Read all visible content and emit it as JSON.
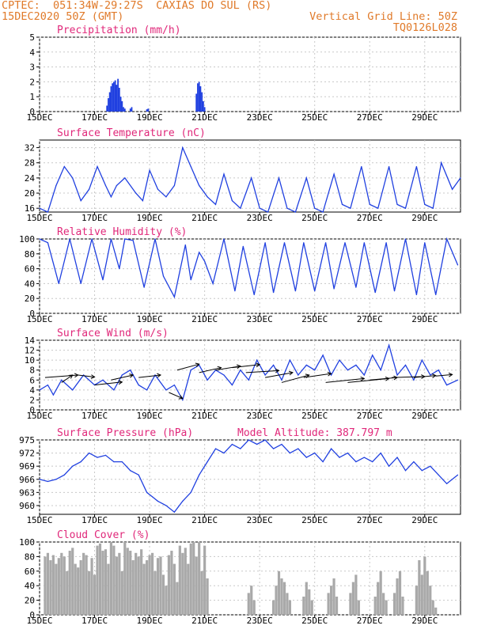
{
  "header": {
    "line1_left": "CPTEC:  051:34W-29:27S  CAXIAS DO SUL (RS)",
    "line2_left": "15DEC2020 50Z (GMT)",
    "line2_right": "Vertical Grid Line: 50Z",
    "line3_right": "TQ0126L028"
  },
  "colors": {
    "header": "#e07a2a",
    "title": "#e0287a",
    "series": "#2040e0",
    "bars": "#a9a9a9",
    "grid": "#c8c8c8"
  },
  "chart_data": [
    {
      "id": "precip",
      "type": "bar",
      "title": "Precipitation (mm/h)",
      "x_tick_labels": [
        "15DEC",
        "17DEC",
        "19DEC",
        "21DEC",
        "23DEC",
        "25DEC",
        "27DEC",
        "29DEC"
      ],
      "ylim": [
        0,
        5
      ],
      "y_ticks": [
        0,
        1,
        2,
        3,
        4,
        5
      ],
      "series": [
        {
          "x": [
            2.45,
            2.5,
            2.55,
            2.6,
            2.65,
            2.7,
            2.75,
            2.8,
            2.85,
            2.9,
            2.95,
            3.0,
            3.05,
            3.1,
            3.3,
            3.35,
            3.9,
            3.95,
            5.7,
            5.75,
            5.8,
            5.85,
            5.9,
            5.95,
            6.0
          ],
          "values": [
            0.4,
            0.9,
            1.3,
            1.7,
            1.9,
            2.0,
            2.1,
            1.8,
            2.2,
            1.6,
            1.0,
            0.7,
            0.3,
            0.2,
            0.2,
            0.3,
            0.15,
            0.2,
            1.2,
            1.9,
            2.0,
            1.7,
            1.3,
            0.7,
            0.3
          ]
        }
      ]
    },
    {
      "id": "temp",
      "type": "line",
      "title": "Surface Temperature (nC)",
      "x_tick_labels": [
        "15DEC",
        "17DEC",
        "19DEC",
        "21DEC",
        "23DEC",
        "25DEC",
        "27DEC",
        "29DEC"
      ],
      "ylim": [
        15,
        34
      ],
      "y_ticks": [
        16,
        20,
        24,
        28,
        32
      ],
      "series": [
        {
          "x": [
            0,
            0.3,
            0.6,
            0.9,
            1.2,
            1.5,
            1.8,
            2.1,
            2.4,
            2.6,
            2.8,
            3.1,
            3.5,
            3.75,
            4.0,
            4.3,
            4.6,
            4.9,
            5.2,
            5.5,
            5.8,
            6.1,
            6.4,
            6.7,
            7.0,
            7.3,
            7.7,
            8.0,
            8.3,
            8.7,
            9.0,
            9.3,
            9.7,
            10.0,
            10.3,
            10.7,
            11.0,
            11.3,
            11.7,
            12.0,
            12.3,
            12.7,
            13.0,
            13.3,
            13.7,
            14.0,
            14.3,
            14.6,
            15.0,
            15.3
          ],
          "values": [
            16,
            15,
            22,
            27,
            24,
            18,
            21,
            27,
            22,
            19,
            22,
            24,
            20,
            18,
            26,
            21,
            19,
            22,
            32,
            27,
            22,
            19,
            17,
            25,
            18,
            16,
            24,
            16,
            15,
            24,
            16,
            15,
            24,
            16,
            15,
            25,
            17,
            16,
            27,
            17,
            16,
            27,
            17,
            16,
            27,
            17,
            16,
            28,
            21,
            24
          ]
        }
      ]
    },
    {
      "id": "rh",
      "type": "line",
      "title": "Relative Humidity (%)",
      "x_tick_labels": [
        "15DEC",
        "17DEC",
        "19DEC",
        "21DEC",
        "23DEC",
        "25DEC",
        "27DEC",
        "29DEC"
      ],
      "ylim": [
        0,
        100
      ],
      "y_ticks": [
        0,
        20,
        40,
        60,
        80,
        100
      ],
      "series": [
        {
          "x": [
            0,
            0.3,
            0.7,
            1.1,
            1.5,
            1.9,
            2.3,
            2.6,
            2.9,
            3.1,
            3.4,
            3.8,
            4.2,
            4.5,
            4.9,
            5.3,
            5.5,
            5.8,
            6.0,
            6.3,
            6.7,
            7.1,
            7.4,
            7.8,
            8.2,
            8.5,
            8.9,
            9.3,
            9.6,
            10.0,
            10.4,
            10.7,
            11.1,
            11.5,
            11.8,
            12.2,
            12.6,
            12.9,
            13.3,
            13.7,
            14.0,
            14.4,
            14.8,
            15.2
          ],
          "values": [
            100,
            95,
            40,
            100,
            40,
            100,
            45,
            100,
            60,
            100,
            98,
            35,
            100,
            50,
            22,
            92,
            45,
            82,
            70,
            40,
            100,
            30,
            90,
            25,
            95,
            28,
            95,
            30,
            95,
            30,
            95,
            33,
            95,
            35,
            95,
            28,
            95,
            30,
            100,
            25,
            95,
            25,
            100,
            65
          ]
        }
      ]
    },
    {
      "id": "wind",
      "type": "line",
      "title": "Surface Wind (m/s)",
      "x_tick_labels": [
        "15DEC",
        "17DEC",
        "19DEC",
        "21DEC",
        "23DEC",
        "25DEC",
        "27DEC",
        "29DEC"
      ],
      "ylim": [
        0,
        14
      ],
      "y_ticks": [
        0,
        2,
        4,
        6,
        8,
        10,
        12,
        14
      ],
      "series": [
        {
          "x": [
            0,
            0.3,
            0.5,
            0.8,
            1.2,
            1.6,
            2.0,
            2.3,
            2.7,
            3.0,
            3.3,
            3.6,
            3.9,
            4.2,
            4.6,
            4.9,
            5.2,
            5.5,
            5.8,
            6.1,
            6.4,
            6.7,
            7.0,
            7.3,
            7.6,
            7.9,
            8.2,
            8.5,
            8.8,
            9.1,
            9.4,
            9.7,
            10.0,
            10.3,
            10.6,
            10.9,
            11.2,
            11.5,
            11.8,
            12.1,
            12.4,
            12.7,
            13.0,
            13.3,
            13.6,
            13.9,
            14.2,
            14.5,
            14.8,
            15.2
          ],
          "values": [
            4,
            5,
            3,
            6,
            4,
            7,
            5,
            6,
            4,
            7,
            8,
            5,
            4,
            7,
            4,
            5,
            2,
            8,
            9,
            6,
            8,
            7,
            5,
            8,
            6,
            10,
            7,
            9,
            6,
            10,
            7,
            9,
            8,
            11,
            7,
            10,
            8,
            9,
            7,
            11,
            8,
            13,
            7,
            9,
            6,
            10,
            7,
            8,
            5,
            6
          ]
        }
      ],
      "arrows": [
        {
          "x": 0.2,
          "y": 6.5,
          "dx": 1.2,
          "dy": 0.5
        },
        {
          "x": 0.8,
          "y": 5.5,
          "dx": 0.4,
          "dy": 1.5
        },
        {
          "x": 1.4,
          "y": 7.0,
          "dx": 0.6,
          "dy": -0.4
        },
        {
          "x": 2.0,
          "y": 5.0,
          "dx": 1.0,
          "dy": 0.6
        },
        {
          "x": 2.6,
          "y": 6.0,
          "dx": 0.8,
          "dy": 1.0
        },
        {
          "x": 3.6,
          "y": 6.5,
          "dx": 0.8,
          "dy": 0.5
        },
        {
          "x": 4.7,
          "y": 3.5,
          "dx": 0.5,
          "dy": -1.2
        },
        {
          "x": 5.0,
          "y": 8.0,
          "dx": 0.8,
          "dy": 1.2
        },
        {
          "x": 5.8,
          "y": 7.5,
          "dx": 0.8,
          "dy": 1.0
        },
        {
          "x": 6.4,
          "y": 8.0,
          "dx": 0.9,
          "dy": 0.8
        },
        {
          "x": 7.0,
          "y": 8.5,
          "dx": 1.0,
          "dy": 0.6
        },
        {
          "x": 7.5,
          "y": 7.5,
          "dx": 1.2,
          "dy": 0.4
        },
        {
          "x": 8.2,
          "y": 6.5,
          "dx": 1.0,
          "dy": 1.0
        },
        {
          "x": 8.8,
          "y": 5.5,
          "dx": 1.0,
          "dy": 1.5
        },
        {
          "x": 9.6,
          "y": 6.5,
          "dx": 1.0,
          "dy": 0.8
        },
        {
          "x": 10.4,
          "y": 5.5,
          "dx": 1.4,
          "dy": 0.8
        },
        {
          "x": 11.2,
          "y": 5.5,
          "dx": 1.5,
          "dy": 0.8
        },
        {
          "x": 12.0,
          "y": 6.0,
          "dx": 1.0,
          "dy": 0.5
        },
        {
          "x": 12.8,
          "y": 6.5,
          "dx": 1.2,
          "dy": 0.2
        },
        {
          "x": 13.6,
          "y": 6.5,
          "dx": 0.8,
          "dy": 0.4
        },
        {
          "x": 14.4,
          "y": 6.8,
          "dx": 0.6,
          "dy": 0.3
        }
      ]
    },
    {
      "id": "pres",
      "type": "line",
      "title": "Surface Pressure (hPa)",
      "annotation": "Model Altitude: 387.797 m",
      "x_tick_labels": [
        "15DEC",
        "17DEC",
        "19DEC",
        "21DEC",
        "23DEC",
        "25DEC",
        "27DEC",
        "29DEC"
      ],
      "ylim": [
        958,
        975
      ],
      "y_ticks": [
        960,
        963,
        966,
        969,
        972,
        975
      ],
      "series": [
        {
          "x": [
            0,
            0.3,
            0.6,
            0.9,
            1.2,
            1.5,
            1.8,
            2.1,
            2.4,
            2.7,
            3.0,
            3.3,
            3.6,
            3.9,
            4.1,
            4.3,
            4.6,
            4.9,
            5.2,
            5.5,
            5.8,
            6.1,
            6.4,
            6.7,
            7.0,
            7.3,
            7.6,
            7.9,
            8.2,
            8.5,
            8.8,
            9.1,
            9.4,
            9.7,
            10.0,
            10.3,
            10.6,
            10.9,
            11.2,
            11.5,
            11.8,
            12.1,
            12.4,
            12.7,
            13.0,
            13.3,
            13.6,
            13.9,
            14.2,
            14.5,
            14.8,
            15.2
          ],
          "values": [
            966,
            965.5,
            966,
            967,
            969,
            970,
            972,
            971,
            971.5,
            970,
            970,
            968,
            967,
            963,
            962,
            961,
            960,
            958.5,
            961,
            963,
            967,
            970,
            973,
            972,
            974,
            973,
            975,
            974,
            975,
            973,
            974,
            972,
            973,
            971,
            972,
            970,
            973,
            971,
            972,
            970,
            971,
            970,
            972,
            969,
            971,
            968,
            970,
            968,
            969,
            967,
            965,
            967
          ]
        }
      ]
    },
    {
      "id": "cloud",
      "type": "bar",
      "title": "Cloud Cover (%)",
      "x_tick_labels": [
        "15DEC",
        "17DEC",
        "19DEC",
        "21DEC",
        "23DEC",
        "25DEC",
        "27DEC",
        "29DEC"
      ],
      "ylim": [
        0,
        100
      ],
      "y_ticks": [
        0,
        20,
        40,
        60,
        80,
        100
      ],
      "series": [
        {
          "x": [
            0.2,
            0.3,
            0.4,
            0.5,
            0.6,
            0.7,
            0.8,
            0.9,
            1.0,
            1.1,
            1.2,
            1.3,
            1.4,
            1.5,
            1.6,
            1.7,
            1.8,
            1.9,
            2.0,
            2.1,
            2.2,
            2.3,
            2.4,
            2.5,
            2.6,
            2.7,
            2.8,
            2.9,
            3.0,
            3.1,
            3.2,
            3.3,
            3.4,
            3.5,
            3.6,
            3.7,
            3.8,
            3.9,
            4.0,
            4.1,
            4.2,
            4.3,
            4.4,
            4.5,
            4.6,
            4.7,
            4.8,
            4.9,
            5.0,
            5.1,
            5.2,
            5.3,
            5.4,
            5.5,
            5.6,
            5.7,
            5.8,
            5.9,
            6.0,
            6.1,
            7.6,
            7.7,
            7.8,
            8.5,
            8.6,
            8.7,
            8.8,
            8.9,
            9.0,
            9.1,
            9.6,
            9.7,
            9.8,
            9.9,
            10.5,
            10.6,
            10.7,
            10.8,
            11.3,
            11.4,
            11.5,
            11.6,
            12.2,
            12.3,
            12.4,
            12.5,
            12.6,
            12.9,
            13.0,
            13.1,
            13.2,
            13.7,
            13.8,
            13.9,
            14.0,
            14.1,
            14.2,
            14.3,
            14.4
          ],
          "values": [
            80,
            85,
            75,
            82,
            70,
            78,
            85,
            80,
            60,
            88,
            92,
            70,
            65,
            75,
            85,
            82,
            60,
            78,
            55,
            95,
            98,
            88,
            90,
            70,
            100,
            95,
            80,
            85,
            60,
            100,
            92,
            88,
            75,
            85,
            80,
            90,
            70,
            75,
            82,
            85,
            60,
            78,
            80,
            55,
            40,
            82,
            88,
            70,
            45,
            95,
            85,
            92,
            70,
            98,
            100,
            80,
            100,
            60,
            95,
            50,
            30,
            40,
            20,
            20,
            40,
            60,
            50,
            45,
            30,
            20,
            25,
            45,
            35,
            20,
            30,
            40,
            50,
            25,
            30,
            45,
            55,
            20,
            25,
            45,
            60,
            30,
            20,
            30,
            50,
            60,
            25,
            40,
            75,
            55,
            80,
            60,
            40,
            20,
            10
          ]
        }
      ]
    }
  ]
}
